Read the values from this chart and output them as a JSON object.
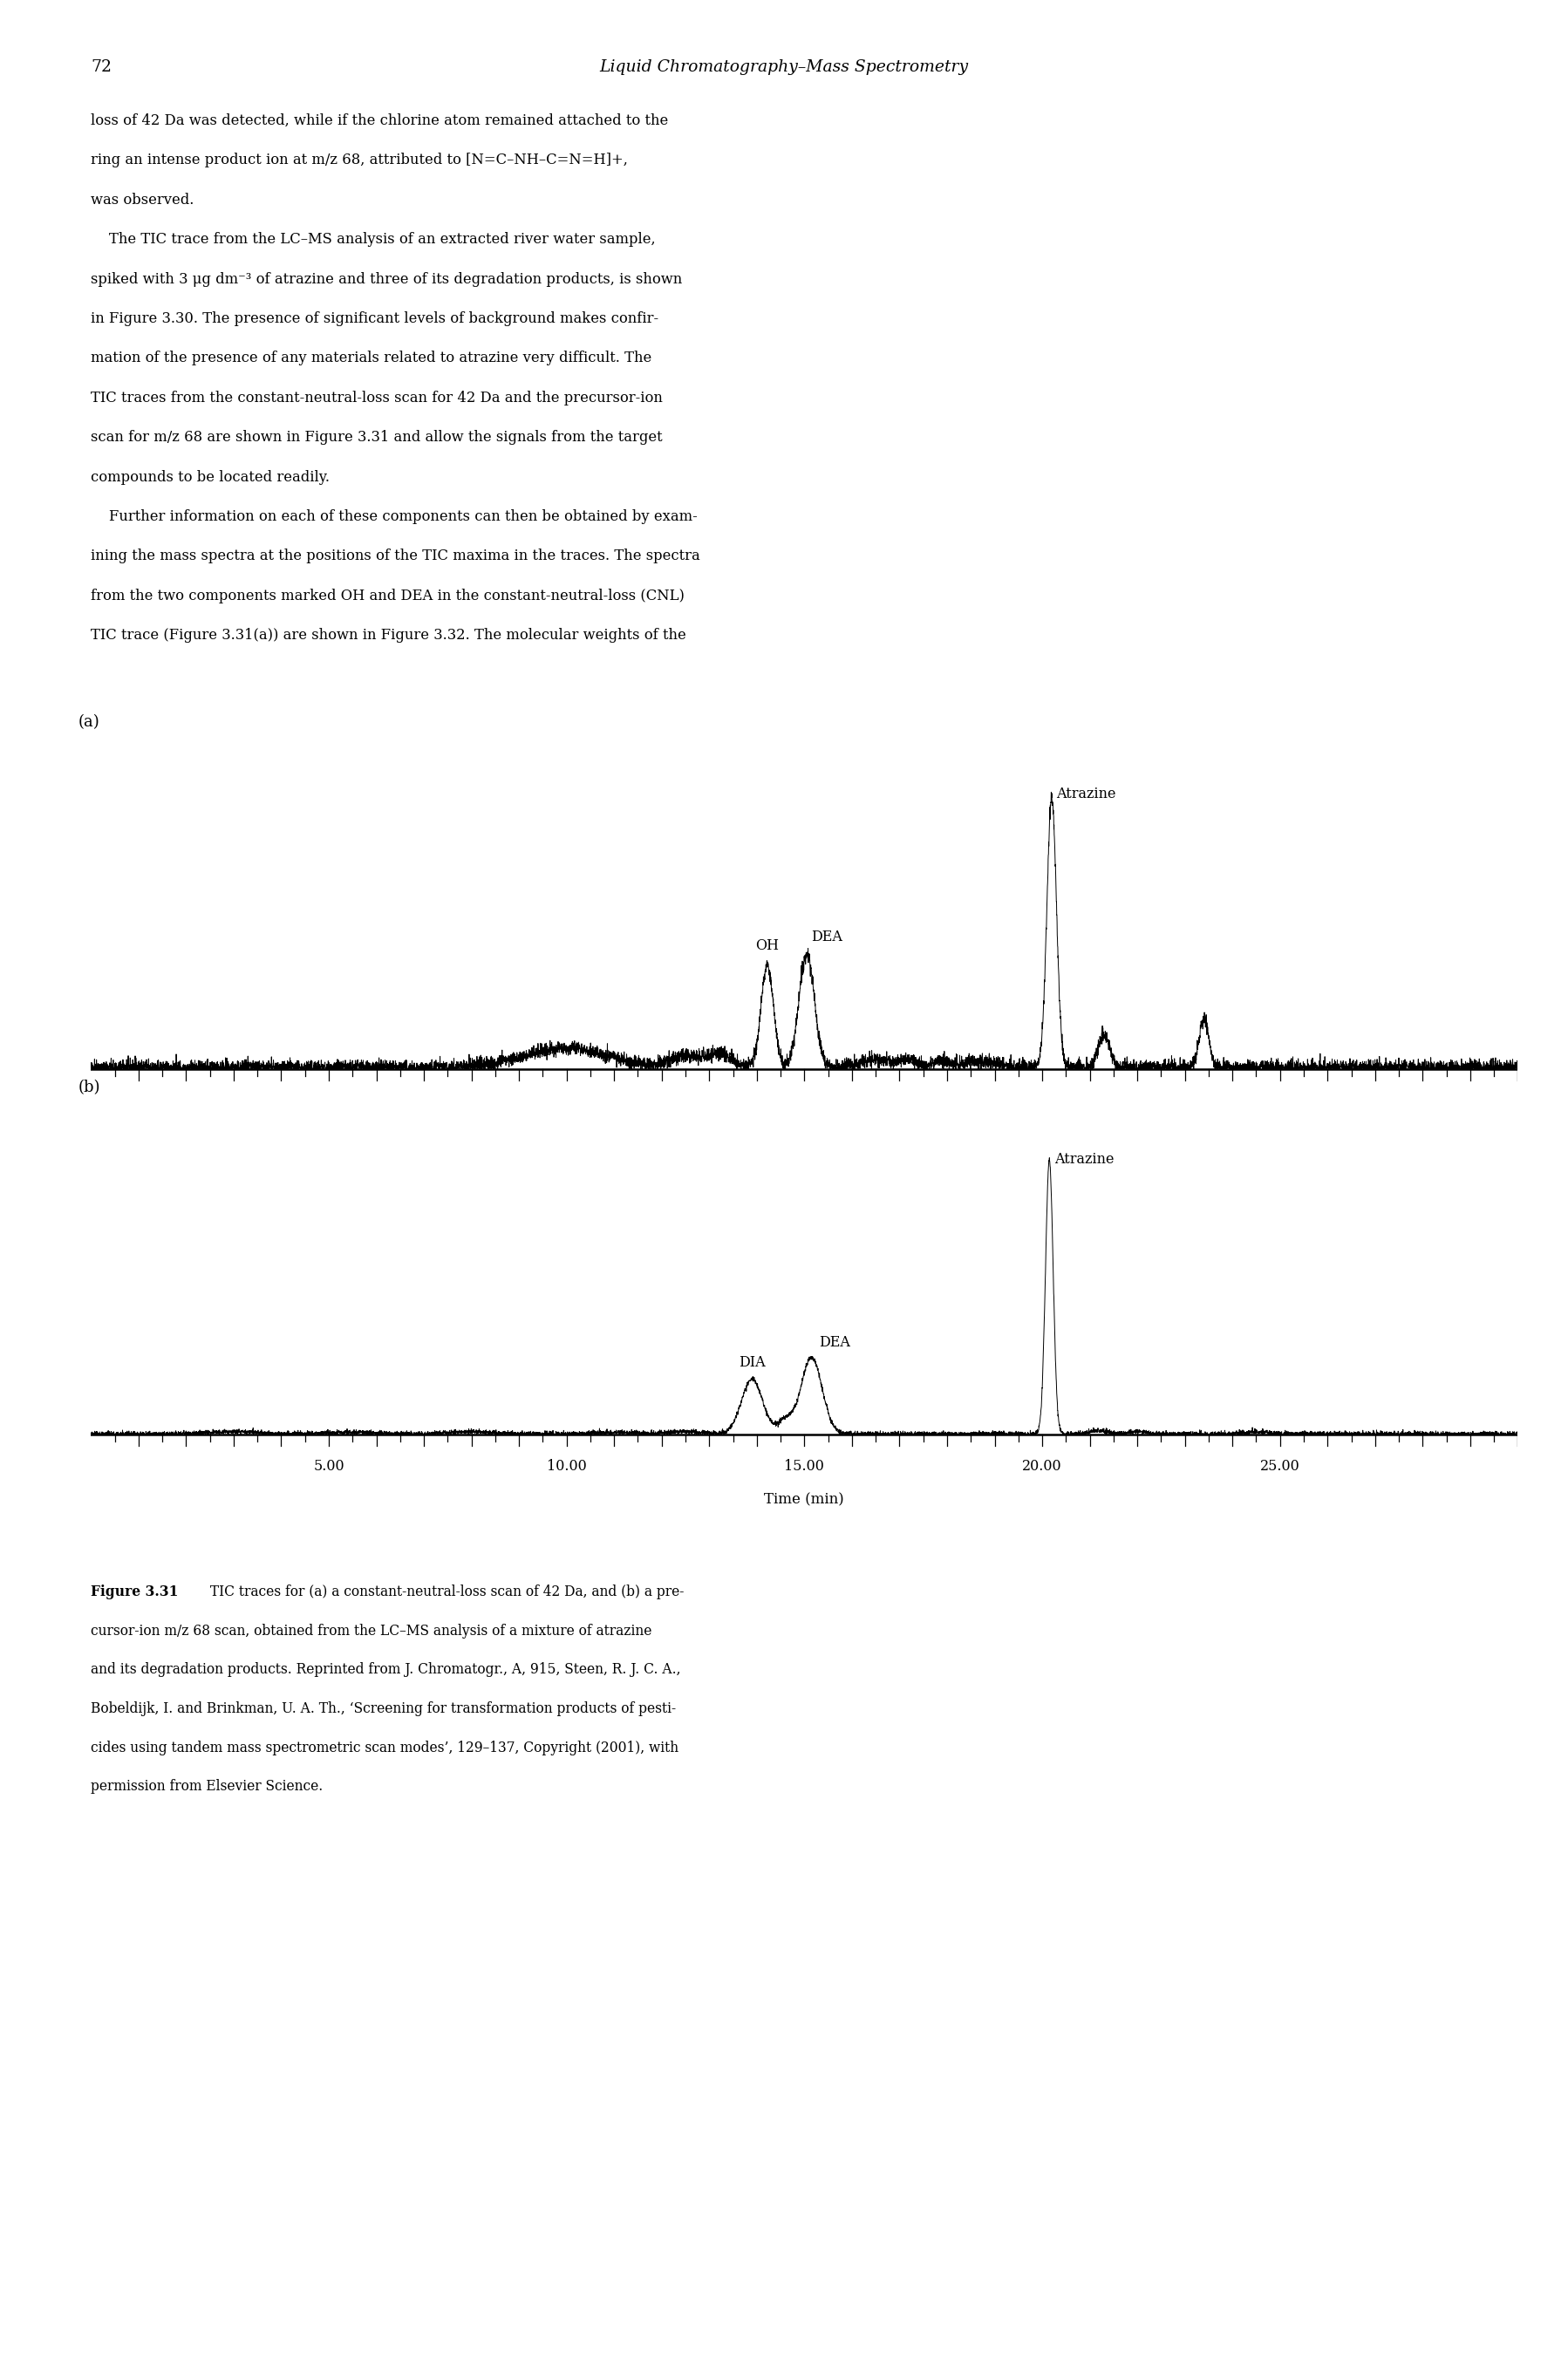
{
  "page_number": "72",
  "page_header": "Liquid Chromatography–Mass Spectrometry",
  "text_line1": "loss of 42 Da was detected, while if the chlorine atom remained attached to the",
  "text_line2": "ring an intense product ion at m/z 68, attributed to [N=C–NH–C=N=H]+,",
  "text_line3": "was observed.",
  "text_line4": "    The TIC trace from the LC–MS analysis of an extracted river water sample,",
  "text_line5": "spiked with 3 μg dm⁻³ of atrazine and three of its degradation products, is shown",
  "text_line6": "in Figure 3.30. The presence of significant levels of background makes confir-",
  "text_line7": "mation of the presence of any materials related to atrazine very difficult. The",
  "text_line8": "TIC traces from the constant-neutral-loss scan for 42 Da and the precursor-ion",
  "text_line9": "scan for m/z 68 are shown in Figure 3.31 and allow the signals from the target",
  "text_line10": "compounds to be located readily.",
  "text_line11": "    Further information on each of these components can then be obtained by exam-",
  "text_line12": "ining the mass spectra at the positions of the TIC maxima in the traces. The spectra",
  "text_line13": "from the two components marked OH and DEA in the constant-neutral-loss (CNL)",
  "text_line14": "TIC trace (Figure 3.31(a)) are shown in Figure 3.32. The molecular weights of the",
  "caption_line1_bold": "Figure 3.31",
  "caption_line1_rest": " TIC traces for (a) a constant-neutral-loss scan of 42 Da, and (b) a pre-",
  "caption_line2": "cursor-ion m/z 68 scan, obtained from the LC–MS analysis of a mixture of atrazine",
  "caption_line3": "and its degradation products. Reprinted from J. Chromatogr., A, 915, Steen, R. J. C. A.,",
  "caption_line4": "Bobeldijk, I. and Brinkman, U. A. Th., ‘Screening for transformation products of pesti-",
  "caption_line5": "cides using tandem mass spectrometric scan modes’, 129–137, Copyright (2001), with",
  "caption_line6": "permission from Elsevier Science.",
  "xmin": 0.0,
  "xmax": 30.0,
  "xticks": [
    5.0,
    10.0,
    15.0,
    20.0,
    25.0
  ],
  "xlabel": "Time (min)",
  "panel_a_label": "(a)",
  "panel_b_label": "(b)",
  "background_color": "#ffffff",
  "line_color": "#000000",
  "text_fontsize": 11.8,
  "header_fontsize": 13.5,
  "caption_fontsize": 11.2,
  "annot_fontsize": 11.5
}
